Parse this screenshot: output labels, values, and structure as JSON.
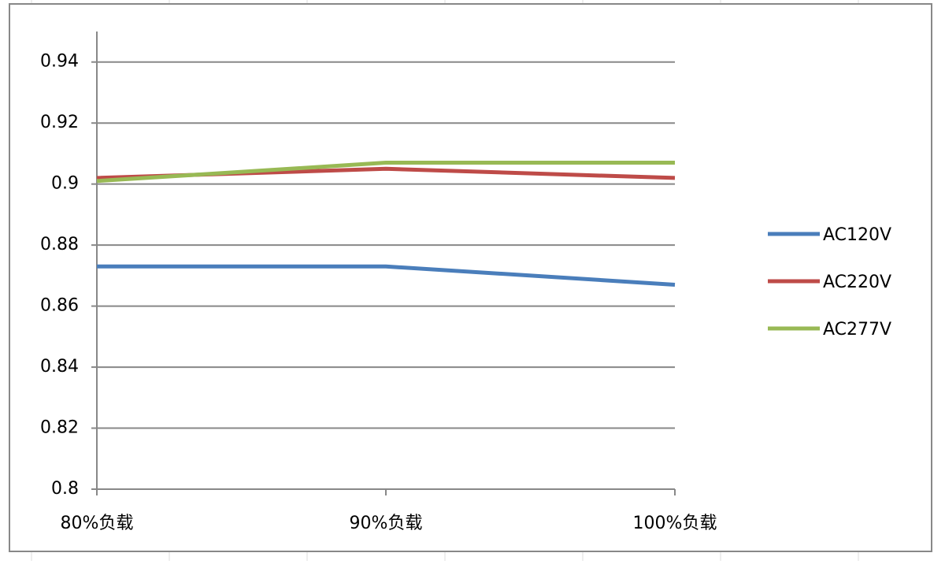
{
  "chart_data": {
    "type": "line",
    "categories": [
      "80%负载",
      "90%负载",
      "100%负载"
    ],
    "series": [
      {
        "name": "AC120V",
        "color": "#4a7ebb",
        "values": [
          0.873,
          0.873,
          0.867
        ]
      },
      {
        "name": "AC220V",
        "color": "#be4b48",
        "values": [
          0.902,
          0.905,
          0.902
        ]
      },
      {
        "name": "AC277V",
        "color": "#98b954",
        "values": [
          0.901,
          0.907,
          0.907
        ]
      }
    ],
    "ylim": [
      0.8,
      0.95
    ],
    "yticks": [
      0.8,
      0.82,
      0.84,
      0.86,
      0.88,
      0.9,
      0.92,
      0.94
    ],
    "grid": true,
    "legend": "right"
  }
}
